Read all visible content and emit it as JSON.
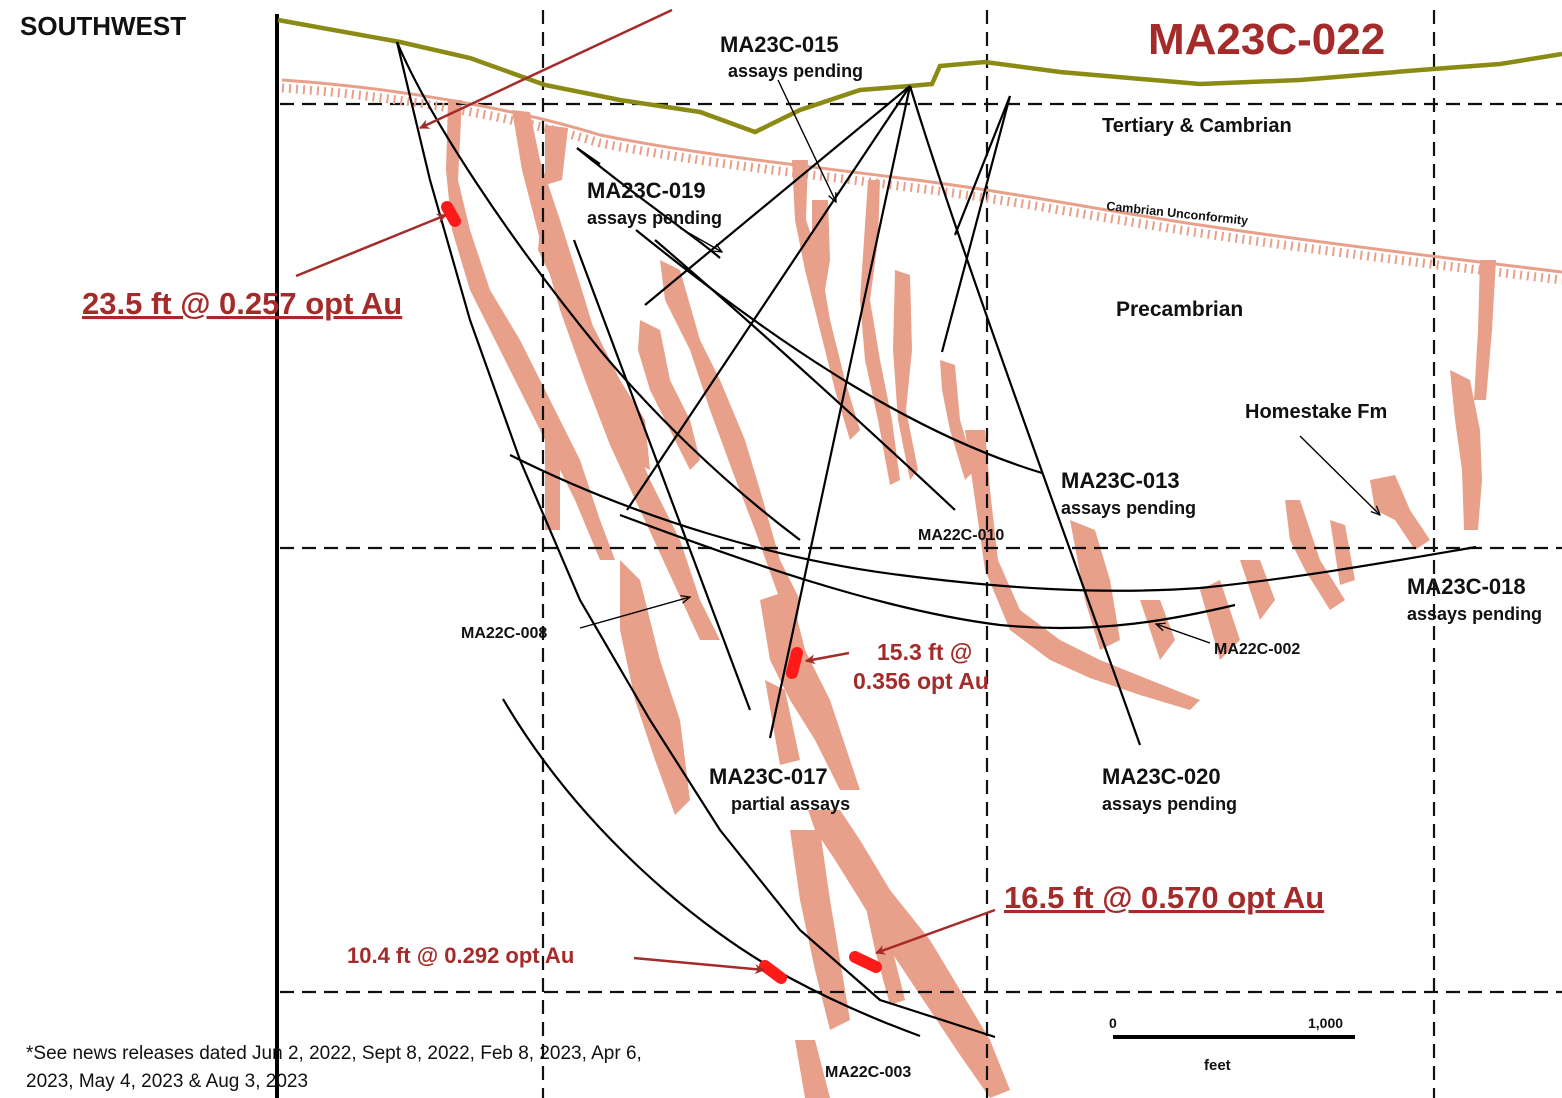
{
  "header": {
    "direction_label": "SOUTHWEST",
    "section_title": "MA23C-022"
  },
  "formations": {
    "tertiary": "Tertiary & Cambrian",
    "unconformity": "Cambrian Unconformity",
    "precambrian": "Precambrian",
    "homestake": "Homestake Fm"
  },
  "drill_holes": [
    {
      "id": "MA23C-015",
      "status": "assays pending"
    },
    {
      "id": "MA23C-019",
      "status": "assays pending"
    },
    {
      "id": "MA23C-013",
      "status": "assays pending"
    },
    {
      "id": "MA22C-010",
      "status": ""
    },
    {
      "id": "MA23C-018",
      "status": "assays pending"
    },
    {
      "id": "MA22C-008",
      "status": ""
    },
    {
      "id": "MA22C-002",
      "status": ""
    },
    {
      "id": "MA23C-017",
      "status": "partial assays"
    },
    {
      "id": "MA23C-020",
      "status": "assays pending"
    },
    {
      "id": "MA22C-003",
      "status": ""
    }
  ],
  "intercepts": [
    {
      "text": "23.5 ft @ 0.257 opt Au"
    },
    {
      "line1": "15.3 ft @",
      "line2": "0.356 opt Au"
    },
    {
      "text": "16.5 ft @ 0.570 opt Au"
    },
    {
      "text": "10.4 ft @ 0.292 opt Au"
    }
  ],
  "scale_bar": {
    "start": "0",
    "end": "1,000",
    "unit": "feet"
  },
  "footnote": "*See news releases dated Jun 2, 2022, Sept 8, 2022, Feb 8, 2023, Apr 6, 2023, May 4, 2023 & Aug 3, 2023",
  "colors": {
    "surface": "#8a8a14",
    "homestake": "#e8a08a",
    "intercept": "#ff1a1a",
    "annotation": "#a52a2a",
    "drillhole": "#000000"
  }
}
